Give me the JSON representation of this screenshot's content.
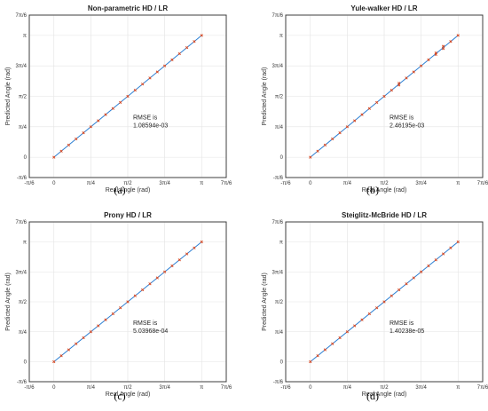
{
  "chart_data": [
    {
      "type": "scatter",
      "title": "Non-parametric HD / LR",
      "xlabel": "Real Angle (rad)",
      "ylabel": "Predicted Angle (rad)",
      "xlim": [
        -0.5236,
        3.6652
      ],
      "ylim": [
        -0.5236,
        3.6652
      ],
      "xticks": [
        "-π/6",
        "0",
        "π/4",
        "π/2",
        "3π/4",
        "π",
        "7π/6"
      ],
      "yticks": [
        "-π/6",
        "0",
        "π/4",
        "π/2",
        "3π/4",
        "π",
        "7π/6"
      ],
      "annotation": [
        "RMSE is",
        "1.08594e-03"
      ],
      "caption": "(a)",
      "grid": true,
      "series": [
        {
          "color": "#2a7fd4",
          "marker": "line",
          "x": [
            0,
            3.1416
          ],
          "y": [
            0,
            3.1416
          ]
        },
        {
          "color": "#d9441c",
          "marker": "x",
          "x": [
            0,
            0.1571,
            0.3142,
            0.4712,
            0.6283,
            0.7854,
            0.9425,
            1.0996,
            1.2566,
            1.4137,
            1.5708,
            1.7279,
            1.885,
            2.042,
            2.1991,
            2.3562,
            2.5133,
            2.6704,
            2.8274,
            2.9845,
            3.1416
          ],
          "y": [
            0,
            0.1571,
            0.3142,
            0.4712,
            0.6283,
            0.7854,
            0.9425,
            1.0996,
            1.2566,
            1.4137,
            1.5708,
            1.7279,
            1.885,
            2.042,
            2.1991,
            2.3562,
            2.5133,
            2.6704,
            2.8274,
            2.9845,
            3.1416
          ]
        }
      ]
    },
    {
      "type": "scatter",
      "title": "Yule-walker HD / LR",
      "xlabel": "Real Angle (rad)",
      "ylabel": "Predicted Angle (rad)",
      "xlim": [
        -0.5236,
        3.6652
      ],
      "ylim": [
        -0.5236,
        3.6652
      ],
      "xticks": [
        "-π/6",
        "0",
        "π/4",
        "π/2",
        "3π/4",
        "π",
        "7π/6"
      ],
      "yticks": [
        "-π/6",
        "0",
        "π/4",
        "π/2",
        "3π/4",
        "π",
        "7π/6"
      ],
      "annotation": [
        "RMSE is",
        "2.46195e-03"
      ],
      "caption": "(b)",
      "grid": true,
      "series": [
        {
          "color": "#2a7fd4",
          "marker": "line",
          "x": [
            0,
            3.1416
          ],
          "y": [
            0,
            3.1416
          ]
        },
        {
          "color": "#d9441c",
          "marker": "x",
          "x": [
            0,
            0.1571,
            0.3142,
            0.4712,
            0.6283,
            0.7854,
            0.9425,
            1.0996,
            1.2566,
            1.4137,
            1.5708,
            1.7279,
            1.885,
            1.885,
            2.042,
            2.1991,
            2.3562,
            2.5133,
            2.6704,
            2.6704,
            2.8274,
            2.8274,
            2.9845,
            3.1416
          ],
          "y": [
            0,
            0.1571,
            0.3142,
            0.4712,
            0.6283,
            0.7854,
            0.9425,
            1.0996,
            1.2566,
            1.4137,
            1.5708,
            1.7279,
            1.86,
            1.91,
            2.042,
            2.1991,
            2.3562,
            2.5133,
            2.65,
            2.69,
            2.8,
            2.86,
            2.9845,
            3.1416
          ]
        }
      ]
    },
    {
      "type": "scatter",
      "title": "Prony HD / LR",
      "xlabel": "Real Angle (rad)",
      "ylabel": "Predicted Angle (rad)",
      "xlim": [
        -0.5236,
        3.6652
      ],
      "ylim": [
        -0.5236,
        3.6652
      ],
      "xticks": [
        "-π/6",
        "0",
        "π/4",
        "π/2",
        "3π/4",
        "π",
        "7π/6"
      ],
      "yticks": [
        "-π/6",
        "0",
        "π/4",
        "π/2",
        "3π/4",
        "π",
        "7π/6"
      ],
      "annotation": [
        "RMSE is",
        "5.03968e-04"
      ],
      "caption": "(c)",
      "grid": true,
      "series": [
        {
          "color": "#2a7fd4",
          "marker": "line",
          "x": [
            0,
            3.1416
          ],
          "y": [
            0,
            3.1416
          ]
        },
        {
          "color": "#d9441c",
          "marker": "x",
          "x": [
            0,
            0.1571,
            0.3142,
            0.4712,
            0.6283,
            0.7854,
            0.9425,
            1.0996,
            1.2566,
            1.4137,
            1.5708,
            1.7279,
            1.885,
            2.042,
            2.1991,
            2.3562,
            2.5133,
            2.6704,
            2.8274,
            2.9845,
            3.1416
          ],
          "y": [
            0,
            0.1571,
            0.3142,
            0.4712,
            0.6283,
            0.7854,
            0.9425,
            1.0996,
            1.2566,
            1.4137,
            1.5708,
            1.7279,
            1.885,
            2.042,
            2.1991,
            2.3562,
            2.5133,
            2.6704,
            2.8274,
            2.9845,
            3.1416
          ]
        }
      ]
    },
    {
      "type": "scatter",
      "title": "Steiglitz-McBride HD / LR",
      "xlabel": "Real Angle (rad)",
      "ylabel": "Predicted Angle (rad)",
      "xlim": [
        -0.5236,
        3.6652
      ],
      "ylim": [
        -0.5236,
        3.6652
      ],
      "xticks": [
        "-π/6",
        "0",
        "π/4",
        "π/2",
        "3π/4",
        "π",
        "7π/6"
      ],
      "yticks": [
        "-π/6",
        "0",
        "π/4",
        "π/2",
        "3π/4",
        "π",
        "7π/6"
      ],
      "annotation": [
        "RMSE is",
        "1.40238e-05"
      ],
      "caption": "(d)",
      "grid": true,
      "series": [
        {
          "color": "#2a7fd4",
          "marker": "line",
          "x": [
            0,
            3.1416
          ],
          "y": [
            0,
            3.1416
          ]
        },
        {
          "color": "#d9441c",
          "marker": "x",
          "x": [
            0,
            0.1571,
            0.3142,
            0.4712,
            0.6283,
            0.7854,
            0.9425,
            1.0996,
            1.2566,
            1.4137,
            1.5708,
            1.7279,
            1.885,
            2.042,
            2.1991,
            2.3562,
            2.5133,
            2.6704,
            2.8274,
            2.9845,
            3.1416
          ],
          "y": [
            0,
            0.1571,
            0.3142,
            0.4712,
            0.6283,
            0.7854,
            0.9425,
            1.0996,
            1.2566,
            1.4137,
            1.5708,
            1.7279,
            1.885,
            2.042,
            2.1991,
            2.3562,
            2.5133,
            2.6704,
            2.8274,
            2.9845,
            3.1416
          ]
        }
      ]
    }
  ]
}
